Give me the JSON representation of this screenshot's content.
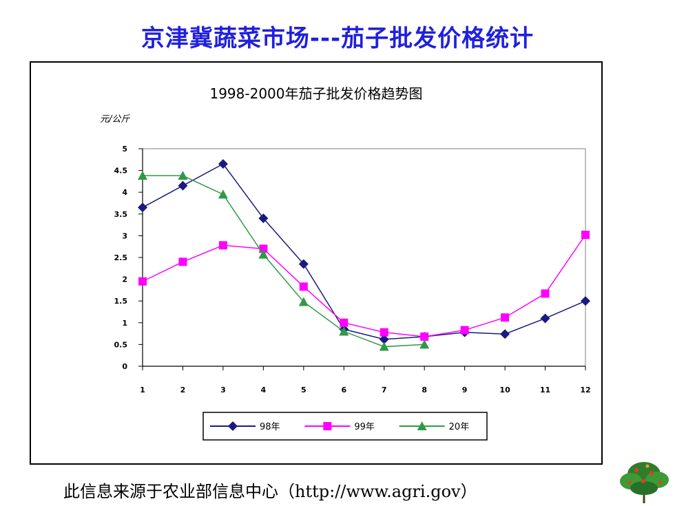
{
  "page": {
    "title": "京津冀蔬菜市场---茄子批发价格统计",
    "source": "此信息来源于农业部信息中心（http://www.agri.gov）"
  },
  "chart_data": {
    "type": "line",
    "title": "1998-2000年茄子批发价格趋势图",
    "ylabel": "元/公斤",
    "xlabel": "",
    "categories": [
      "1",
      "2",
      "3",
      "4",
      "5",
      "6",
      "7",
      "8",
      "9",
      "10",
      "11",
      "12"
    ],
    "ylim": [
      0,
      5
    ],
    "yticks": [
      "0",
      "0.5",
      "1",
      "1.5",
      "2",
      "2.5",
      "3",
      "3.5",
      "4",
      "4.5",
      "5"
    ],
    "grid": false,
    "legend_position": "bottom",
    "series": [
      {
        "name": "98年",
        "color": "#1a1a80",
        "marker": "diamond",
        "values": [
          3.65,
          4.15,
          4.65,
          3.4,
          2.35,
          0.85,
          0.62,
          0.68,
          0.78,
          0.74,
          1.1,
          1.5
        ]
      },
      {
        "name": "99年",
        "color": "#ff00ff",
        "marker": "square",
        "values": [
          1.95,
          2.4,
          2.78,
          2.7,
          1.83,
          1.0,
          0.78,
          0.68,
          0.83,
          1.12,
          1.67,
          3.02
        ]
      },
      {
        "name": "20年",
        "color": "#2e9a45",
        "marker": "triangle",
        "values": [
          4.38,
          4.38,
          3.95,
          2.57,
          1.48,
          0.8,
          0.45,
          0.5,
          null,
          null,
          null,
          null
        ]
      }
    ]
  }
}
